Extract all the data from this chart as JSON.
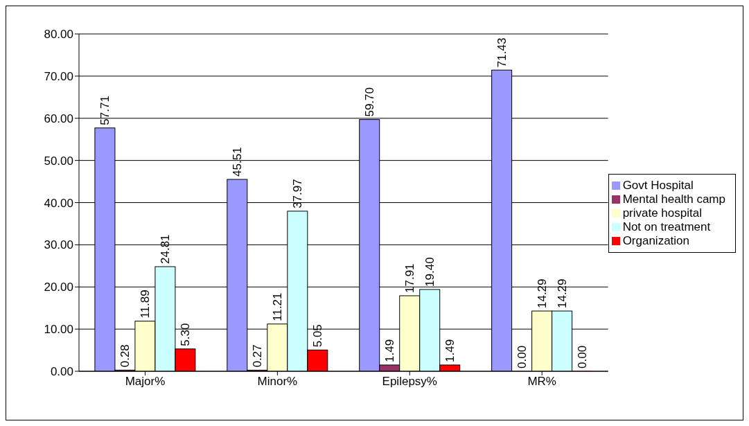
{
  "chart_data": {
    "type": "bar",
    "categories": [
      "Major%",
      "Minor%",
      "Epilepsy%",
      "MR%"
    ],
    "series": [
      {
        "name": "Govt Hospital",
        "color": "#9999ff",
        "values": [
          57.71,
          45.51,
          59.7,
          71.43
        ],
        "value_labels": [
          "57.71",
          "45.51",
          "59.70",
          "71.43"
        ]
      },
      {
        "name": "Mental health camp",
        "color": "#993366",
        "values": [
          0.28,
          0.27,
          1.49,
          0
        ],
        "value_labels": [
          "0.28",
          "0.27",
          "1.49",
          "0.00"
        ]
      },
      {
        "name": "private hospital",
        "color": "#ffffcc",
        "values": [
          11.89,
          11.21,
          17.91,
          14.29
        ],
        "value_labels": [
          "11.89",
          "11.21",
          "17.91",
          "14.29"
        ]
      },
      {
        "name": "Not on treatment",
        "color": "#ccffff",
        "values": [
          24.81,
          37.97,
          19.4,
          14.29
        ],
        "value_labels": [
          "24.81",
          "37.97",
          "19.40",
          "14.29"
        ]
      },
      {
        "name": "Organization",
        "color": "#ff0000",
        "values": [
          5.3,
          5.05,
          1.49,
          0
        ],
        "value_labels": [
          "5.30",
          "5.05",
          "1.49",
          "0.00"
        ]
      }
    ],
    "ylim": [
      0,
      80
    ],
    "yticks": [
      {
        "value": 0,
        "label": "0.00"
      },
      {
        "value": 10,
        "label": "10.00"
      },
      {
        "value": 20,
        "label": "20.00"
      },
      {
        "value": 30,
        "label": "30.00"
      },
      {
        "value": 40,
        "label": "40.00"
      },
      {
        "value": 50,
        "label": "50.00"
      },
      {
        "value": 60,
        "label": "60.00"
      },
      {
        "value": 70,
        "label": "70.00"
      },
      {
        "value": 80,
        "label": "80.00"
      }
    ],
    "grid": "y",
    "legend": "right"
  }
}
